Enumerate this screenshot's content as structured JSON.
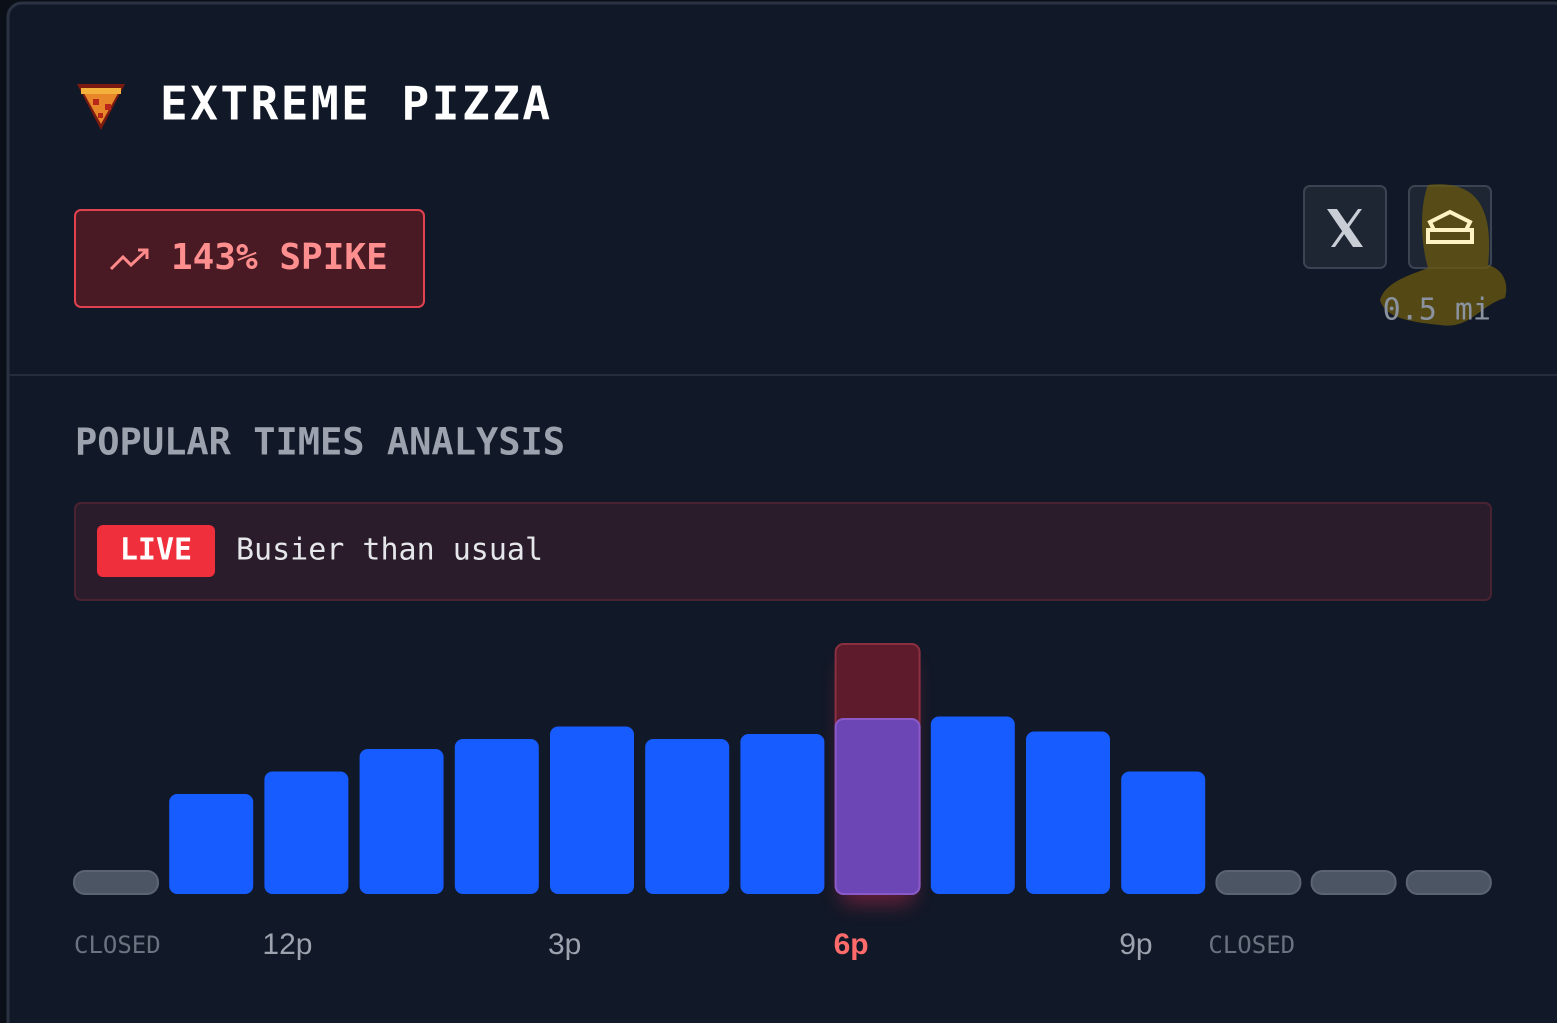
{
  "header": {
    "title": "EXTREME PIZZA",
    "spike": "143% SPIKE",
    "distance": "0.5 mi"
  },
  "section_title": "POPULAR TIMES ANALYSIS",
  "status": {
    "badge": "LIVE",
    "text": "Busier than usual"
  },
  "chart_data": {
    "type": "bar",
    "categories": [
      "CLOSED",
      null,
      "12p",
      null,
      null,
      "3p",
      null,
      null,
      "6p",
      null,
      null,
      "9p",
      "CLOSED",
      null,
      null
    ],
    "values": [
      0,
      40,
      49,
      58,
      62,
      67,
      62,
      64,
      70,
      71,
      65,
      49,
      0,
      0,
      0
    ],
    "live_values": [
      null,
      null,
      null,
      null,
      null,
      null,
      null,
      null,
      100,
      null,
      null,
      null,
      null,
      null,
      null
    ],
    "ylim": [
      0,
      100
    ],
    "color": "#175cff",
    "highlight_color": "#6d46b5",
    "live_color": "#5e1b2b",
    "closed_color": "#4b5563"
  }
}
